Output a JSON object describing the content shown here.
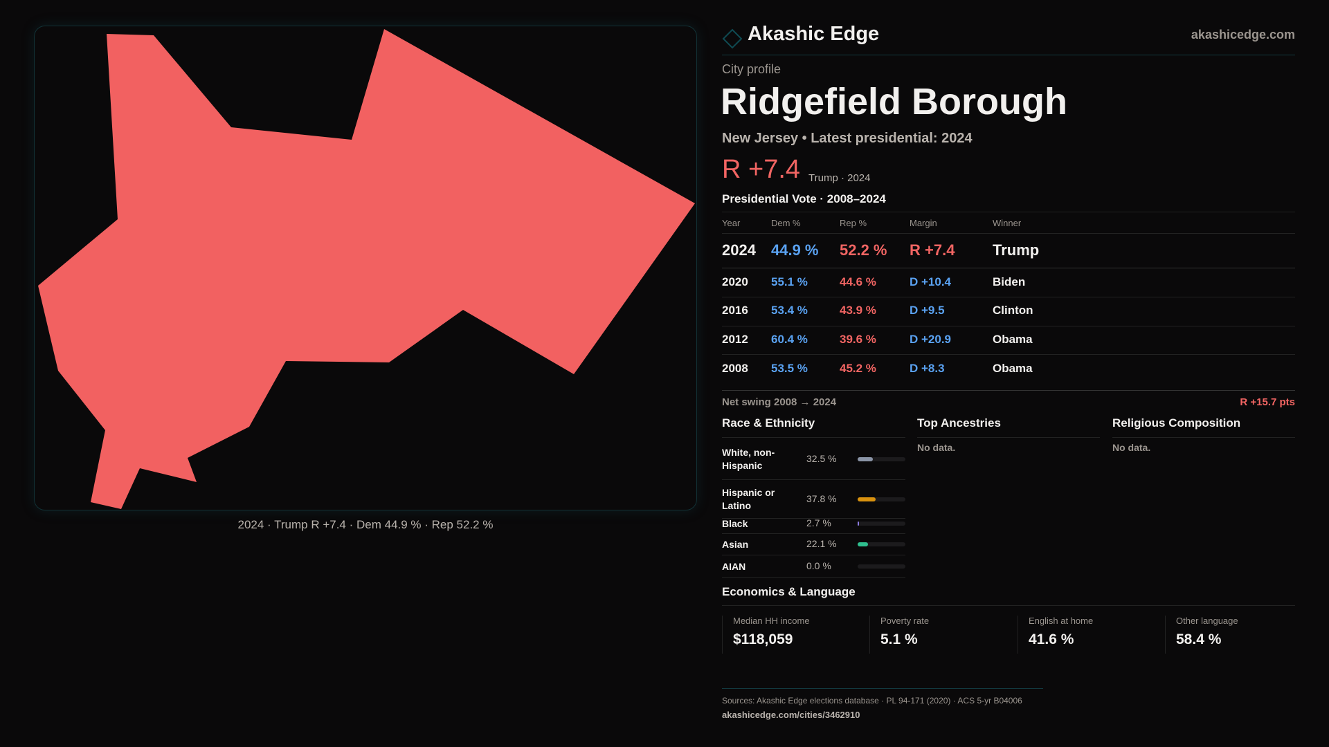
{
  "brand": {
    "name": "Akashic Edge",
    "domain": "akashicedge.com"
  },
  "profile": {
    "kicker": "City profile",
    "title": "Ridgefield Borough",
    "subtitle": "New Jersey • Latest presidential: 2024",
    "margin": "R +7.4",
    "margin_note": "Trump · 2024"
  },
  "map": {
    "caption": "2024 · Trump R +7.4 · Dem 44.9 % · Rep 52.2 %",
    "fill": "#f26161"
  },
  "votes": {
    "title": "Presidential Vote · 2008–2024",
    "headers": [
      "Year",
      "Dem %",
      "Rep %",
      "Margin",
      "Winner"
    ],
    "rows": [
      {
        "year": "2024",
        "dem": "44.9 %",
        "rep": "52.2 %",
        "margin": "R +7.4",
        "winner": "Trump",
        "party": "R"
      },
      {
        "year": "2020",
        "dem": "55.1 %",
        "rep": "44.6 %",
        "margin": "D +10.4",
        "winner": "Biden",
        "party": "D"
      },
      {
        "year": "2016",
        "dem": "53.4 %",
        "rep": "43.9 %",
        "margin": "D +9.5",
        "winner": "Clinton",
        "party": "D"
      },
      {
        "year": "2012",
        "dem": "60.4 %",
        "rep": "39.6 %",
        "margin": "D +20.9",
        "winner": "Obama",
        "party": "D"
      },
      {
        "year": "2008",
        "dem": "53.5 %",
        "rep": "45.2 %",
        "margin": "D +8.3",
        "winner": "Obama",
        "party": "D"
      }
    ],
    "swing_label": "Net swing 2008 → 2024",
    "swing_value": "R +15.7 pts"
  },
  "race": {
    "title": "Race & Ethnicity",
    "items": [
      {
        "label": "White, non-Hispanic",
        "pct": "32.5 %",
        "value": 32.5,
        "color": "#8a94a6"
      },
      {
        "label": "Hispanic or Latino",
        "pct": "37.8 %",
        "value": 37.8,
        "color": "#d9920f"
      },
      {
        "label": "Black",
        "pct": "2.7 %",
        "value": 2.7,
        "color": "#8b7be0"
      },
      {
        "label": "Asian",
        "pct": "22.1 %",
        "value": 22.1,
        "color": "#2fbf8f"
      },
      {
        "label": "AIAN",
        "pct": "0.0 %",
        "value": 0.0,
        "color": "#888888"
      }
    ]
  },
  "ancestries": {
    "title": "Top Ancestries",
    "empty": "No data."
  },
  "religion": {
    "title": "Religious Composition",
    "empty": "No data."
  },
  "econ": {
    "title": "Economics & Language",
    "stats": [
      {
        "label": "Median HH income",
        "value": "$118,059"
      },
      {
        "label": "Poverty rate",
        "value": "5.1 %"
      },
      {
        "label": "English at home",
        "value": "41.6 %"
      },
      {
        "label": "Other language",
        "value": "58.4 %"
      }
    ]
  },
  "footer": {
    "sources": "Sources: Akashic Edge elections database · PL 94-171 (2020) · ACS 5-yr B04006",
    "url": "akashicedge.com/cities/3462910"
  }
}
